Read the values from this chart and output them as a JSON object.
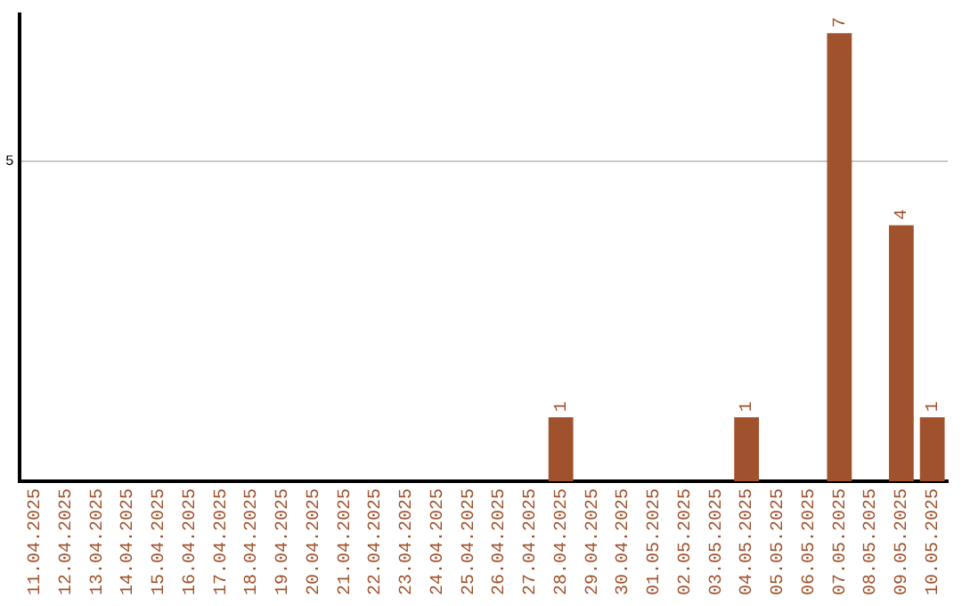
{
  "chart_data": {
    "type": "bar",
    "categories": [
      "11.04.2025",
      "12.04.2025",
      "13.04.2025",
      "14.04.2025",
      "15.04.2025",
      "16.04.2025",
      "17.04.2025",
      "18.04.2025",
      "19.04.2025",
      "20.04.2025",
      "21.04.2025",
      "22.04.2025",
      "23.04.2025",
      "24.04.2025",
      "25.04.2025",
      "26.04.2025",
      "27.04.2025",
      "28.04.2025",
      "29.04.2025",
      "30.04.2025",
      "01.05.2025",
      "02.05.2025",
      "03.05.2025",
      "04.05.2025",
      "05.05.2025",
      "06.05.2025",
      "07.05.2025",
      "08.05.2025",
      "09.05.2025",
      "10.05.2025"
    ],
    "values": [
      null,
      null,
      null,
      null,
      null,
      null,
      null,
      null,
      null,
      null,
      null,
      null,
      null,
      null,
      null,
      null,
      null,
      1,
      null,
      null,
      null,
      null,
      null,
      1,
      null,
      null,
      7,
      null,
      4,
      1
    ],
    "color": "#a0522d",
    "ylim": [
      0,
      7.3
    ],
    "yticks": [
      5
    ],
    "grid": "y",
    "data_labels": true,
    "legend": false
  }
}
